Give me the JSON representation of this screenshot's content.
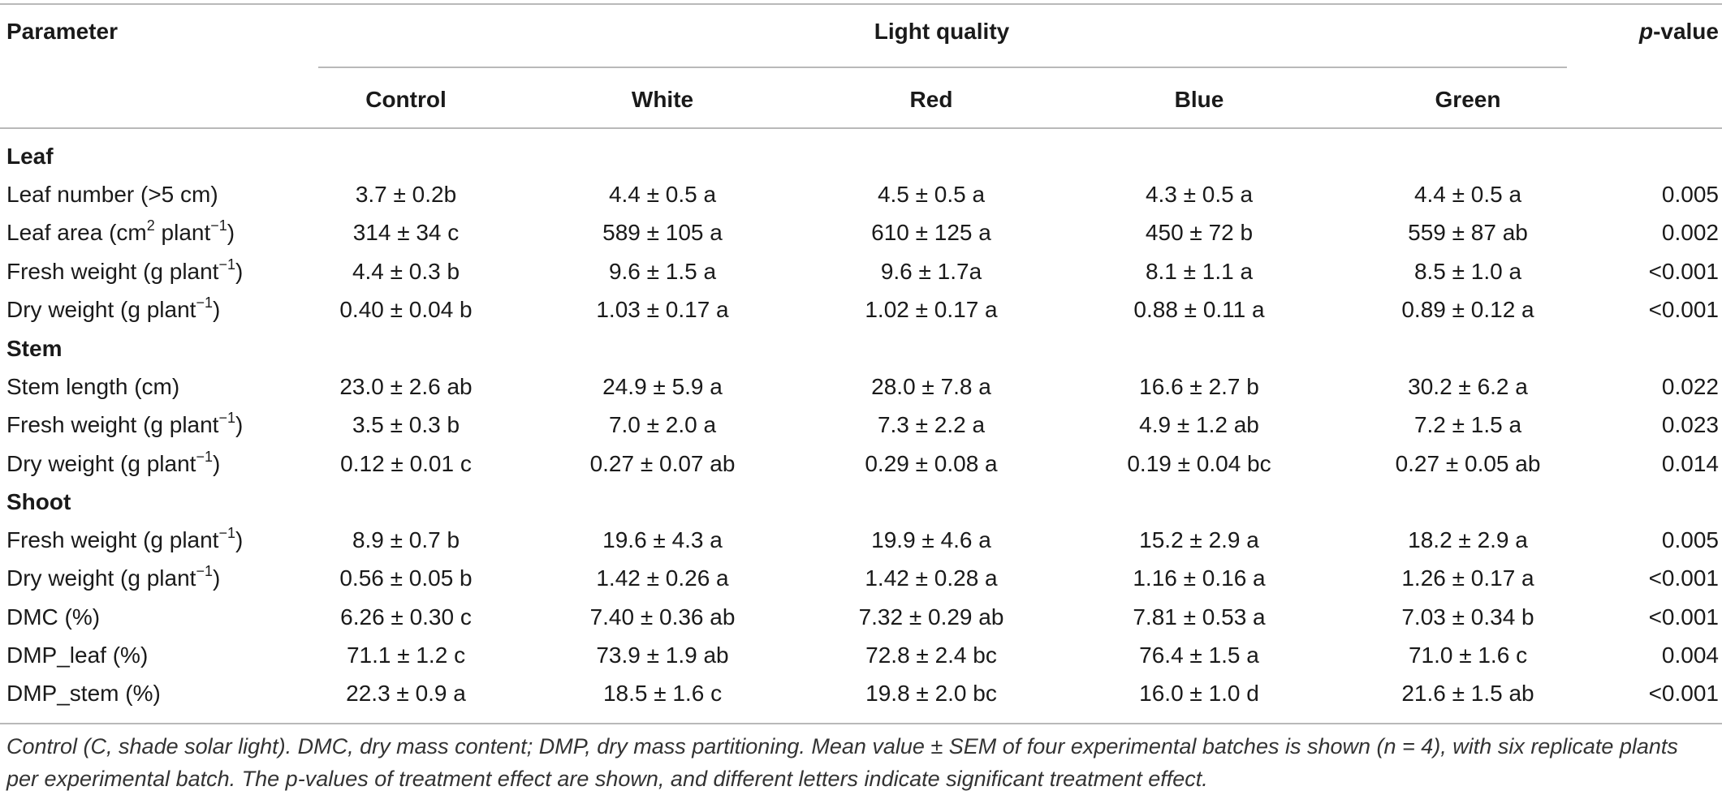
{
  "header": {
    "parameter": "Parameter",
    "group": "Light quality",
    "pvalue_italic": "p",
    "pvalue_rest": "-value",
    "columns": [
      "Control",
      "White",
      "Red",
      "Blue",
      "Green"
    ]
  },
  "sections": [
    {
      "title": "Leaf",
      "rows": [
        {
          "label": "Leaf number (>5 cm)",
          "values": [
            "3.7 ± 0.2b",
            "4.4 ± 0.5 a",
            "4.5 ± 0.5 a",
            "4.3 ± 0.5 a",
            "4.4 ± 0.5 a"
          ],
          "p": "0.005"
        },
        {
          "label_pre": "Leaf area (cm",
          "label_sup": "2",
          "label_mid": " plant",
          "label_sup2": "−1",
          "label_post": ")",
          "values": [
            "314 ± 34 c",
            "589 ± 105 a",
            "610 ± 125 a",
            "450 ± 72 b",
            "559 ± 87 ab"
          ],
          "p": "0.002"
        },
        {
          "label_pre": "Fresh weight (g plant",
          "label_sup": "−1",
          "label_post": ")",
          "values": [
            "4.4 ± 0.3 b",
            "9.6 ± 1.5 a",
            "9.6 ± 1.7a",
            "8.1 ± 1.1 a",
            "8.5 ± 1.0 a"
          ],
          "p": "<0.001"
        },
        {
          "label_pre": "Dry weight (g plant",
          "label_sup": "−1",
          "label_post": ")",
          "values": [
            "0.40 ± 0.04 b",
            "1.03 ± 0.17 a",
            "1.02 ± 0.17 a",
            "0.88 ± 0.11 a",
            "0.89 ± 0.12 a"
          ],
          "p": "<0.001"
        }
      ]
    },
    {
      "title": "Stem",
      "rows": [
        {
          "label": "Stem length (cm)",
          "values": [
            "23.0 ± 2.6 ab",
            "24.9 ± 5.9 a",
            "28.0 ± 7.8 a",
            "16.6 ± 2.7 b",
            "30.2 ± 6.2 a"
          ],
          "p": "0.022"
        },
        {
          "label_pre": "Fresh weight (g plant",
          "label_sup": "−1",
          "label_post": ")",
          "values": [
            "3.5 ± 0.3 b",
            "7.0 ± 2.0 a",
            "7.3 ± 2.2 a",
            "4.9 ± 1.2 ab",
            "7.2 ± 1.5 a"
          ],
          "p": "0.023"
        },
        {
          "label_pre": "Dry weight (g plant",
          "label_sup": "−1",
          "label_post": ")",
          "values": [
            "0.12 ± 0.01 c",
            "0.27 ± 0.07 ab",
            "0.29 ± 0.08 a",
            "0.19 ± 0.04 bc",
            "0.27 ± 0.05 ab"
          ],
          "p": "0.014"
        }
      ]
    },
    {
      "title": "Shoot",
      "rows": [
        {
          "label_pre": "Fresh weight (g plant",
          "label_sup": "−1",
          "label_post": ")",
          "values": [
            "8.9 ± 0.7 b",
            "19.6 ± 4.3 a",
            "19.9 ± 4.6 a",
            "15.2 ± 2.9 a",
            "18.2 ± 2.9 a"
          ],
          "p": "0.005"
        },
        {
          "label_pre": "Dry weight (g plant",
          "label_sup": "−1",
          "label_post": ")",
          "values": [
            "0.56 ± 0.05 b",
            "1.42 ± 0.26 a",
            "1.42 ± 0.28 a",
            "1.16 ± 0.16 a",
            "1.26 ± 0.17 a"
          ],
          "p": "<0.001"
        },
        {
          "label": "DMC (%)",
          "values": [
            "6.26 ± 0.30 c",
            "7.40 ± 0.36 ab",
            "7.32 ± 0.29 ab",
            "7.81 ± 0.53 a",
            "7.03 ± 0.34 b"
          ],
          "p": "<0.001"
        },
        {
          "label": "DMP_leaf (%)",
          "values": [
            "71.1 ± 1.2 c",
            "73.9 ± 1.9 ab",
            "72.8 ± 2.4 bc",
            "76.4 ± 1.5 a",
            "71.0 ± 1.6 c"
          ],
          "p": "0.004"
        },
        {
          "label": "DMP_stem (%)",
          "values": [
            "22.3 ± 0.9 a",
            "18.5 ± 1.6 c",
            "19.8 ± 2.0 bc",
            "16.0 ± 1.0 d",
            "21.6 ± 1.5 ab"
          ],
          "p": "<0.001"
        }
      ]
    }
  ],
  "footnote": "Control (C, shade solar light). DMC, dry mass content; DMP, dry mass partitioning. Mean value ± SEM of four experimental batches is shown (n = 4), with six replicate plants per experimental batch. The p-values of treatment effect are shown, and different letters indicate significant treatment effect."
}
